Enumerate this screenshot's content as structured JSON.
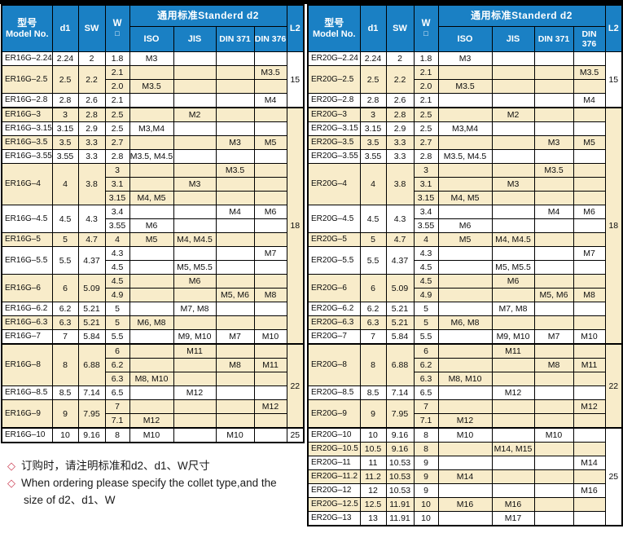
{
  "colors": {
    "header_bg": "#1a80c4",
    "row_shade": "#f8ecca",
    "border": "#000000",
    "note_diamond": "#cd4257"
  },
  "header": {
    "model_zh": "型号",
    "model_en": "Model No.",
    "d1": "d1",
    "sw": "SW",
    "w": "W",
    "w_square": "□",
    "standard": "通用标准Standerd  d2",
    "iso": "ISO",
    "jis": "JIS",
    "din371": "DIN 371",
    "din376": "DIN 376",
    "l2": "L2"
  },
  "notes": {
    "diamond": "◇",
    "line1": "订购时，请注明标准和d2、d1、W尺寸",
    "line2": "When ordering please specify the collet type,and the",
    "line3": "size of d2、d1、W"
  },
  "tables": [
    {
      "name": "ER16G",
      "l2_groups": [
        {
          "value": "15",
          "rows": 4
        },
        {
          "value": "18",
          "rows": 17
        },
        {
          "value": "22",
          "rows": 6
        },
        {
          "value": "25",
          "rows": 1
        }
      ],
      "groups": [
        {
          "model": "ER16G–2.24",
          "d1": "2.24",
          "sw": "2",
          "rows": [
            {
              "w": "1.8",
              "iso": "M3",
              "jis": "",
              "din371": "",
              "din376": ""
            }
          ]
        },
        {
          "model": "ER16G–2.5",
          "d1": "2.5",
          "sw": "2.2",
          "rows": [
            {
              "w": "2.1",
              "iso": "",
              "jis": "",
              "din371": "",
              "din376": "M3.5"
            },
            {
              "w": "2.0",
              "iso": "M3.5",
              "jis": "",
              "din371": "",
              "din376": ""
            }
          ]
        },
        {
          "model": "ER16G–2.8",
          "d1": "2.8",
          "sw": "2.6",
          "rows": [
            {
              "w": "2.1",
              "iso": "",
              "jis": "",
              "din371": "",
              "din376": "M4"
            }
          ]
        },
        {
          "model": "ER16G–3",
          "d1": "3",
          "sw": "2.8",
          "rows": [
            {
              "w": "2.5",
              "iso": "",
              "jis": "M2",
              "din371": "",
              "din376": ""
            }
          ]
        },
        {
          "model": "ER16G–3.15",
          "d1": "3.15",
          "sw": "2.9",
          "rows": [
            {
              "w": "2.5",
              "iso": "M3,M4",
              "jis": "",
              "din371": "",
              "din376": ""
            }
          ]
        },
        {
          "model": "ER16G–3.5",
          "d1": "3.5",
          "sw": "3.3",
          "rows": [
            {
              "w": "2.7",
              "iso": "",
              "jis": "",
              "din371": "M3",
              "din376": "M5"
            }
          ]
        },
        {
          "model": "ER16G–3.55",
          "d1": "3.55",
          "sw": "3.3",
          "rows": [
            {
              "w": "2.8",
              "iso": "M3.5, M4.5",
              "jis": "",
              "din371": "",
              "din376": ""
            }
          ]
        },
        {
          "model": "ER16G–4",
          "d1": "4",
          "sw": "3.8",
          "rows": [
            {
              "w": "3",
              "iso": "",
              "jis": "",
              "din371": "M3.5",
              "din376": ""
            },
            {
              "w": "3.1",
              "iso": "",
              "jis": "M3",
              "din371": "",
              "din376": ""
            },
            {
              "w": "3.15",
              "iso": "M4, M5",
              "jis": "",
              "din371": "",
              "din376": ""
            }
          ]
        },
        {
          "model": "ER16G–4.5",
          "d1": "4.5",
          "sw": "4.3",
          "rows": [
            {
              "w": "3.4",
              "iso": "",
              "jis": "",
              "din371": "M4",
              "din376": "M6"
            },
            {
              "w": "3.55",
              "iso": "M6",
              "jis": "",
              "din371": "",
              "din376": ""
            }
          ]
        },
        {
          "model": "ER16G–5",
          "d1": "5",
          "sw": "4.7",
          "rows": [
            {
              "w": "4",
              "iso": "M5",
              "jis": "M4, M4.5",
              "din371": "",
              "din376": ""
            }
          ]
        },
        {
          "model": "ER16G–5.5",
          "d1": "5.5",
          "sw": "4.37",
          "rows": [
            {
              "w": "4.3",
              "iso": "",
              "jis": "",
              "din371": "",
              "din376": "M7"
            },
            {
              "w": "4.5",
              "iso": "",
              "jis": "M5, M5.5",
              "din371": "",
              "din376": ""
            }
          ]
        },
        {
          "model": "ER16G–6",
          "d1": "6",
          "sw": "5.09",
          "rows": [
            {
              "w": "4.5",
              "iso": "",
              "jis": "M6",
              "din371": "",
              "din376": ""
            },
            {
              "w": "4.9",
              "iso": "",
              "jis": "",
              "din371": "M5, M6",
              "din376": "M8"
            }
          ]
        },
        {
          "model": "ER16G–6.2",
          "d1": "6.2",
          "sw": "5.21",
          "rows": [
            {
              "w": "5",
              "iso": "",
              "jis": "M7, M8",
              "din371": "",
              "din376": ""
            }
          ]
        },
        {
          "model": "ER16G–6.3",
          "d1": "6.3",
          "sw": "5.21",
          "rows": [
            {
              "w": "5",
              "iso": "M6, M8",
              "jis": "",
              "din371": "",
              "din376": ""
            }
          ]
        },
        {
          "model": "ER16G–7",
          "d1": "7",
          "sw": "5.84",
          "rows": [
            {
              "w": "5.5",
              "iso": "",
              "jis": "M9, M10",
              "din371": "M7",
              "din376": "M10"
            }
          ]
        },
        {
          "model": "ER16G–8",
          "d1": "8",
          "sw": "6.88",
          "rows": [
            {
              "w": "6",
              "iso": "",
              "jis": "M11",
              "din371": "",
              "din376": ""
            },
            {
              "w": "6.2",
              "iso": "",
              "jis": "",
              "din371": "M8",
              "din376": "M11"
            },
            {
              "w": "6.3",
              "iso": "M8, M10",
              "jis": "",
              "din371": "",
              "din376": ""
            }
          ]
        },
        {
          "model": "ER16G–8.5",
          "d1": "8.5",
          "sw": "7.14",
          "rows": [
            {
              "w": "6.5",
              "iso": "",
              "jis": "M12",
              "din371": "",
              "din376": ""
            }
          ]
        },
        {
          "model": "ER16G–9",
          "d1": "9",
          "sw": "7.95",
          "rows": [
            {
              "w": "7",
              "iso": "",
              "jis": "",
              "din371": "",
              "din376": "M12"
            },
            {
              "w": "7.1",
              "iso": "M12",
              "jis": "",
              "din371": "",
              "din376": ""
            }
          ]
        },
        {
          "model": "ER16G–10",
          "d1": "10",
          "sw": "9.16",
          "rows": [
            {
              "w": "8",
              "iso": "M10",
              "jis": "",
              "din371": "M10",
              "din376": ""
            }
          ]
        }
      ]
    },
    {
      "name": "ER20G",
      "l2_groups": [
        {
          "value": "15",
          "rows": 4
        },
        {
          "value": "18",
          "rows": 17
        },
        {
          "value": "22",
          "rows": 6
        },
        {
          "value": "25",
          "rows": 7
        }
      ],
      "groups": [
        {
          "model": "ER20G–2.24",
          "d1": "2.24",
          "sw": "2",
          "rows": [
            {
              "w": "1.8",
              "iso": "M3",
              "jis": "",
              "din371": "",
              "din376": ""
            }
          ]
        },
        {
          "model": "ER20G–2.5",
          "d1": "2.5",
          "sw": "2.2",
          "rows": [
            {
              "w": "2.1",
              "iso": "",
              "jis": "",
              "din371": "",
              "din376": "M3.5"
            },
            {
              "w": "2.0",
              "iso": "M3.5",
              "jis": "",
              "din371": "",
              "din376": ""
            }
          ]
        },
        {
          "model": "ER20G–2.8",
          "d1": "2.8",
          "sw": "2.6",
          "rows": [
            {
              "w": "2.1",
              "iso": "",
              "jis": "",
              "din371": "",
              "din376": "M4"
            }
          ]
        },
        {
          "model": "ER20G–3",
          "d1": "3",
          "sw": "2.8",
          "rows": [
            {
              "w": "2.5",
              "iso": "",
              "jis": "M2",
              "din371": "",
              "din376": ""
            }
          ]
        },
        {
          "model": "ER20G–3.15",
          "d1": "3.15",
          "sw": "2.9",
          "rows": [
            {
              "w": "2.5",
              "iso": "M3,M4",
              "jis": "",
              "din371": "",
              "din376": ""
            }
          ]
        },
        {
          "model": "ER20G–3.5",
          "d1": "3.5",
          "sw": "3.3",
          "rows": [
            {
              "w": "2.7",
              "iso": "",
              "jis": "",
              "din371": "M3",
              "din376": "M5"
            }
          ]
        },
        {
          "model": "ER20G–3.55",
          "d1": "3.55",
          "sw": "3.3",
          "rows": [
            {
              "w": "2.8",
              "iso": "M3.5, M4.5",
              "jis": "",
              "din371": "",
              "din376": ""
            }
          ]
        },
        {
          "model": "ER20G–4",
          "d1": "4",
          "sw": "3.8",
          "rows": [
            {
              "w": "3",
              "iso": "",
              "jis": "",
              "din371": "M3.5",
              "din376": ""
            },
            {
              "w": "3.1",
              "iso": "",
              "jis": "M3",
              "din371": "",
              "din376": ""
            },
            {
              "w": "3.15",
              "iso": "M4, M5",
              "jis": "",
              "din371": "",
              "din376": ""
            }
          ]
        },
        {
          "model": "ER20G–4.5",
          "d1": "4.5",
          "sw": "4.3",
          "rows": [
            {
              "w": "3.4",
              "iso": "",
              "jis": "",
              "din371": "M4",
              "din376": "M6"
            },
            {
              "w": "3.55",
              "iso": "M6",
              "jis": "",
              "din371": "",
              "din376": ""
            }
          ]
        },
        {
          "model": "ER20G–5",
          "d1": "5",
          "sw": "4.7",
          "rows": [
            {
              "w": "4",
              "iso": "M5",
              "jis": "M4, M4.5",
              "din371": "",
              "din376": ""
            }
          ]
        },
        {
          "model": "ER20G–5.5",
          "d1": "5.5",
          "sw": "4.37",
          "rows": [
            {
              "w": "4.3",
              "iso": "",
              "jis": "",
              "din371": "",
              "din376": "M7"
            },
            {
              "w": "4.5",
              "iso": "",
              "jis": "M5, M5.5",
              "din371": "",
              "din376": ""
            }
          ]
        },
        {
          "model": "ER20G–6",
          "d1": "6",
          "sw": "5.09",
          "rows": [
            {
              "w": "4.5",
              "iso": "",
              "jis": "M6",
              "din371": "",
              "din376": ""
            },
            {
              "w": "4.9",
              "iso": "",
              "jis": "",
              "din371": "M5, M6",
              "din376": "M8"
            }
          ]
        },
        {
          "model": "ER20G–6.2",
          "d1": "6.2",
          "sw": "5.21",
          "rows": [
            {
              "w": "5",
              "iso": "",
              "jis": "M7, M8",
              "din371": "",
              "din376": ""
            }
          ]
        },
        {
          "model": "ER20G–6.3",
          "d1": "6.3",
          "sw": "5.21",
          "rows": [
            {
              "w": "5",
              "iso": "M6, M8",
              "jis": "",
              "din371": "",
              "din376": ""
            }
          ]
        },
        {
          "model": "ER20G–7",
          "d1": "7",
          "sw": "5.84",
          "rows": [
            {
              "w": "5.5",
              "iso": "",
              "jis": "M9, M10",
              "din371": "M7",
              "din376": "M10"
            }
          ]
        },
        {
          "model": "ER20G–8",
          "d1": "8",
          "sw": "6.88",
          "rows": [
            {
              "w": "6",
              "iso": "",
              "jis": "M11",
              "din371": "",
              "din376": ""
            },
            {
              "w": "6.2",
              "iso": "",
              "jis": "",
              "din371": "M8",
              "din376": "M11"
            },
            {
              "w": "6.3",
              "iso": "M8, M10",
              "jis": "",
              "din371": "",
              "din376": ""
            }
          ]
        },
        {
          "model": "ER20G–8.5",
          "d1": "8.5",
          "sw": "7.14",
          "rows": [
            {
              "w": "6.5",
              "iso": "",
              "jis": "M12",
              "din371": "",
              "din376": ""
            }
          ]
        },
        {
          "model": "ER20G–9",
          "d1": "9",
          "sw": "7.95",
          "rows": [
            {
              "w": "7",
              "iso": "",
              "jis": "",
              "din371": "",
              "din376": "M12"
            },
            {
              "w": "7.1",
              "iso": "M12",
              "jis": "",
              "din371": "",
              "din376": ""
            }
          ]
        },
        {
          "model": "ER20G–10",
          "d1": "10",
          "sw": "9.16",
          "rows": [
            {
              "w": "8",
              "iso": "M10",
              "jis": "",
              "din371": "M10",
              "din376": ""
            }
          ]
        },
        {
          "model": "ER20G–10.5",
          "d1": "10.5",
          "sw": "9.16",
          "rows": [
            {
              "w": "8",
              "iso": "",
              "jis": "M14, M15",
              "din371": "",
              "din376": ""
            }
          ]
        },
        {
          "model": "ER20G–11",
          "d1": "11",
          "sw": "10.53",
          "rows": [
            {
              "w": "9",
              "iso": "",
              "jis": "",
              "din371": "",
              "din376": "M14"
            }
          ]
        },
        {
          "model": "ER20G–11.2",
          "d1": "11.2",
          "sw": "10.53",
          "rows": [
            {
              "w": "9",
              "iso": "M14",
              "jis": "",
              "din371": "",
              "din376": ""
            }
          ]
        },
        {
          "model": "ER20G–12",
          "d1": "12",
          "sw": "10.53",
          "rows": [
            {
              "w": "9",
              "iso": "",
              "jis": "",
              "din371": "",
              "din376": "M16"
            }
          ]
        },
        {
          "model": "ER20G–12.5",
          "d1": "12.5",
          "sw": "11.91",
          "rows": [
            {
              "w": "10",
              "iso": "M16",
              "jis": "M16",
              "din371": "",
              "din376": ""
            }
          ]
        },
        {
          "model": "ER20G–13",
          "d1": "13",
          "sw": "11.91",
          "rows": [
            {
              "w": "10",
              "iso": "",
              "jis": "M17",
              "din371": "",
              "din376": ""
            }
          ]
        }
      ]
    }
  ]
}
